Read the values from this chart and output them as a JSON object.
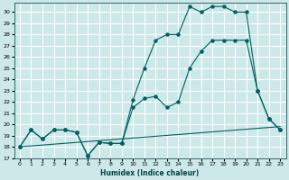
{
  "xlabel": "Humidex (Indice chaleur)",
  "bg_color": "#cce8e8",
  "grid_color": "#ffffff",
  "line_color": "#006060",
  "xlim": [
    -0.5,
    23.5
  ],
  "ylim": [
    17,
    30.8
  ],
  "yticks": [
    17,
    18,
    19,
    20,
    21,
    22,
    23,
    24,
    25,
    26,
    27,
    28,
    29,
    30
  ],
  "xticks": [
    0,
    1,
    2,
    3,
    4,
    5,
    6,
    7,
    8,
    9,
    10,
    11,
    12,
    13,
    14,
    15,
    16,
    17,
    18,
    19,
    20,
    21,
    22,
    23
  ],
  "series": [
    {
      "x": [
        0,
        1,
        2,
        3,
        4,
        5,
        6,
        7,
        8,
        9,
        10,
        11,
        12,
        13,
        14,
        15,
        16,
        17,
        18,
        19,
        20,
        21,
        22,
        23
      ],
      "y": [
        18.0,
        19.5,
        18.7,
        19.5,
        19.5,
        19.3,
        17.2,
        18.4,
        18.3,
        18.3,
        22.2,
        25.0,
        27.5,
        28.0,
        28.0,
        30.5,
        30.0,
        30.5,
        30.5,
        30.0,
        30.0,
        23.0,
        20.5,
        19.5
      ],
      "marker": true
    },
    {
      "x": [
        0,
        1,
        2,
        3,
        4,
        5,
        6,
        7,
        8,
        9,
        10,
        11,
        12,
        13,
        14,
        15,
        16,
        17,
        18,
        19,
        20,
        21,
        22,
        23
      ],
      "y": [
        18.0,
        19.5,
        18.7,
        19.5,
        19.5,
        19.3,
        17.2,
        18.4,
        18.3,
        18.3,
        21.5,
        22.3,
        22.5,
        21.5,
        22.0,
        25.0,
        26.5,
        27.5,
        27.5,
        27.5,
        27.5,
        23.0,
        20.5,
        19.5
      ],
      "marker": true
    },
    {
      "x": [
        0,
        23
      ],
      "y": [
        18.0,
        19.8
      ],
      "marker": false
    }
  ]
}
